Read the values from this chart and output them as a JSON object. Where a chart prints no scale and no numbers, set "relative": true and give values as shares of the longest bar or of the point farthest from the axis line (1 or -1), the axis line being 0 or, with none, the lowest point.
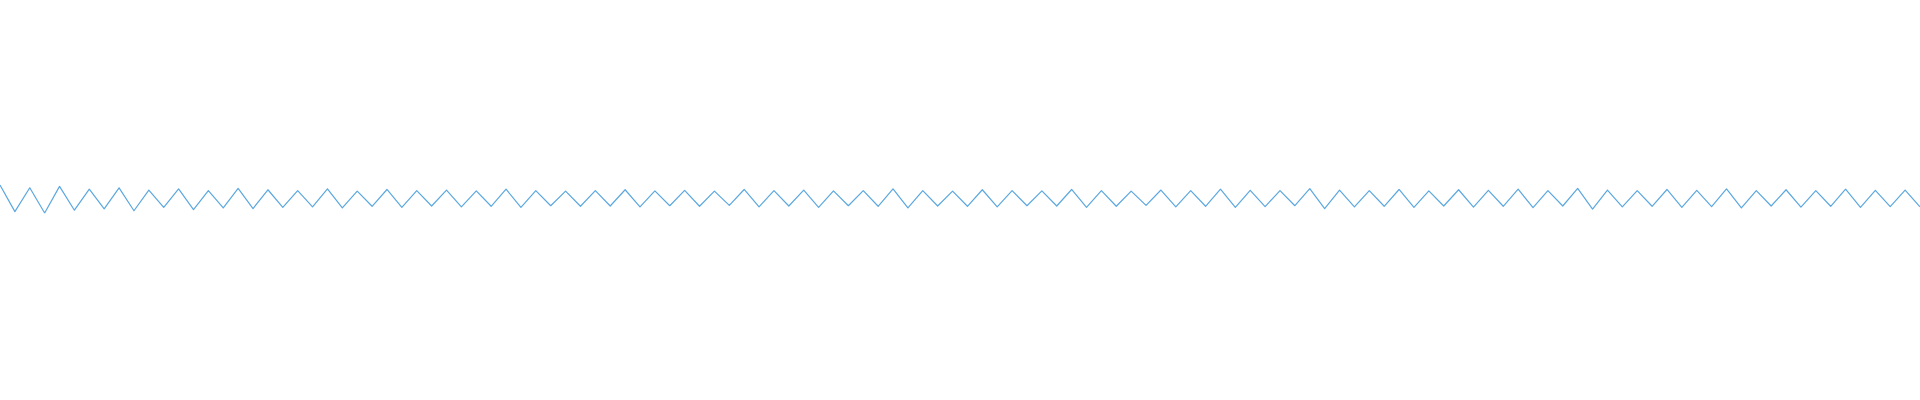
{
  "chart_data": {
    "type": "line",
    "relative": true,
    "color": "#5ca8df",
    "categories": [
      null,
      null,
      null,
      null,
      null,
      null,
      null,
      null,
      null,
      null,
      null,
      null,
      null,
      null,
      null,
      null,
      null,
      null,
      null,
      null,
      null,
      null,
      null,
      null,
      null,
      null,
      null,
      null,
      null,
      null,
      null,
      null,
      null,
      null,
      null,
      null,
      null,
      null,
      null,
      null,
      null,
      null,
      null,
      null,
      null,
      null,
      null,
      null,
      null,
      null,
      null,
      null,
      null,
      null,
      null,
      null,
      null,
      null,
      null,
      null,
      null,
      null,
      null,
      null,
      null,
      null,
      null,
      null,
      null,
      null,
      null,
      null,
      null,
      null,
      null,
      null,
      null,
      null,
      null,
      null,
      null,
      null,
      null,
      null,
      null,
      null,
      null,
      null,
      null,
      null,
      null,
      null,
      null,
      null,
      null,
      null,
      null,
      null,
      null,
      null,
      null,
      null,
      null,
      null,
      null,
      null,
      null,
      null,
      null,
      null,
      null,
      null,
      null,
      null,
      null,
      null,
      null,
      null,
      null,
      null,
      null,
      null,
      null,
      null,
      null,
      null,
      null,
      null,
      null,
      null
    ],
    "values": [
      1.0,
      0.05,
      0.9,
      0.0,
      0.95,
      0.1,
      0.85,
      0.15,
      0.9,
      0.08,
      0.82,
      0.2,
      0.86,
      0.12,
      0.8,
      0.18,
      0.88,
      0.16,
      0.83,
      0.2,
      0.8,
      0.22,
      0.86,
      0.18,
      0.78,
      0.24,
      0.84,
      0.2,
      0.8,
      0.25,
      0.82,
      0.22,
      0.79,
      0.24,
      0.85,
      0.2,
      0.8,
      0.26,
      0.78,
      0.24,
      0.8,
      0.25,
      0.83,
      0.22,
      0.79,
      0.26,
      0.81,
      0.24,
      0.78,
      0.27,
      0.84,
      0.22,
      0.8,
      0.25,
      0.82,
      0.2,
      0.79,
      0.26,
      0.8,
      0.24,
      0.86,
      0.18,
      0.8,
      0.25,
      0.78,
      0.24,
      0.83,
      0.22,
      0.8,
      0.26,
      0.79,
      0.25,
      0.84,
      0.2,
      0.8,
      0.24,
      0.78,
      0.27,
      0.82,
      0.22,
      0.8,
      0.24,
      0.85,
      0.2,
      0.81,
      0.23,
      0.8,
      0.26,
      0.87,
      0.16,
      0.82,
      0.22,
      0.8,
      0.24,
      0.84,
      0.2,
      0.79,
      0.25,
      0.83,
      0.21,
      0.81,
      0.24,
      0.85,
      0.19,
      0.8,
      0.25,
      0.88,
      0.14,
      0.82,
      0.22,
      0.8,
      0.24,
      0.84,
      0.2,
      0.81,
      0.23,
      0.86,
      0.18,
      0.8,
      0.25,
      0.83,
      0.21,
      0.8,
      0.24,
      0.85,
      0.2,
      0.81,
      0.23,
      0.82,
      0.22
    ]
  }
}
